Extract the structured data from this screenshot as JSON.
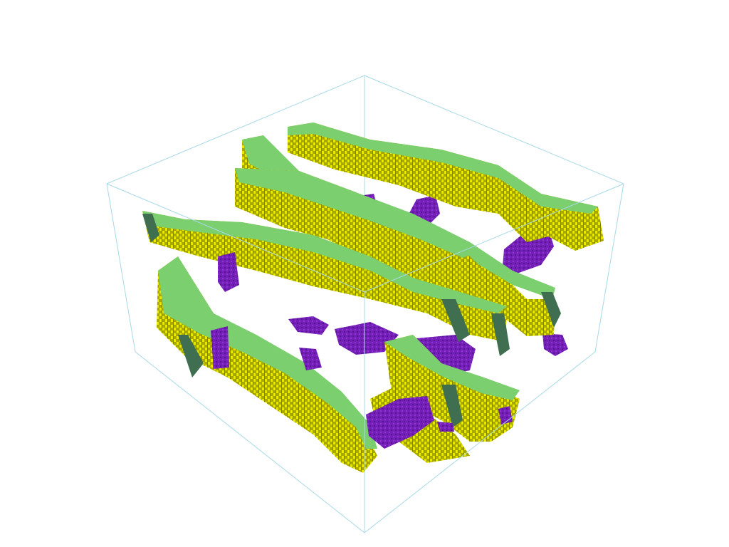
{
  "scene": {
    "type": "3d-voxel-render",
    "background_color": "#ffffff",
    "bounding_box_color": "#a8d8e8",
    "colors": {
      "top_face": "#7ccf6f",
      "side_face": "#a8a800",
      "side_face_dark": "#8a8a00",
      "highlight": "#e8e800",
      "shadow_face": "#3f6f50",
      "purple_voxels": "#7420b8",
      "purple_dark": "#5a1490"
    }
  }
}
